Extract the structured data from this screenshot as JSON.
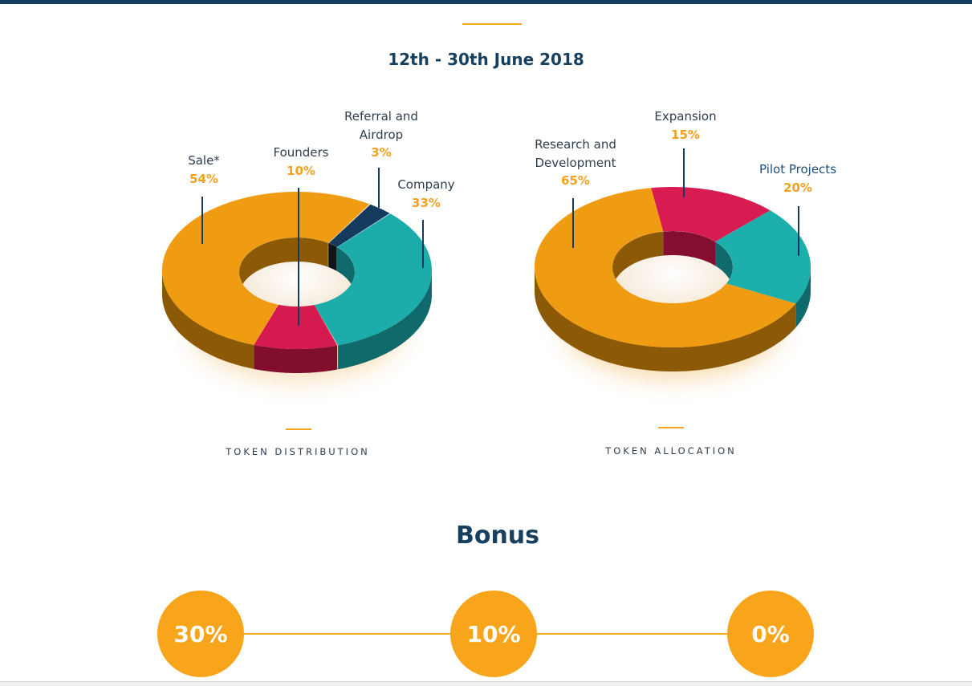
{
  "header": {
    "date_range": "12th - 30th June 2018"
  },
  "charts": [
    {
      "caption": "TOKEN DISTRIBUTION",
      "type": "donut-3d",
      "slices": [
        {
          "name": "Referral and Airdrop",
          "line1": "Referral and",
          "line2": "Airdrop",
          "percent_label": "3%",
          "value": 3,
          "color": "#143b5e",
          "side": "#101418"
        },
        {
          "name": "Company",
          "line1": "Company",
          "percent_label": "33%",
          "value": 33,
          "color": "#1cadaa",
          "side": "#10696a"
        },
        {
          "name": "Founders",
          "line1": "Founders",
          "percent_label": "10%",
          "value": 10,
          "color": "#d41a4e",
          "side": "#820e2e"
        },
        {
          "name": "Sale*",
          "line1": "Sale*",
          "percent_label": "54%",
          "value": 54,
          "color": "#f09c12",
          "side": "#8c5a06"
        }
      ]
    },
    {
      "caption": "TOKEN ALLOCATION",
      "type": "donut-3d",
      "slices": [
        {
          "name": "Expansion",
          "line1": "Expansion",
          "percent_label": "15%",
          "value": 15,
          "color": "#d81b50",
          "side": "#850e30"
        },
        {
          "name": "Pilot Projects",
          "line1": "Pilot Projects",
          "percent_label": "20%",
          "value": 20,
          "color": "#1cafac",
          "side": "#10696a"
        },
        {
          "name": "Research and Development",
          "line1": "Research and",
          "line2": "Development",
          "percent_label": "65%",
          "value": 65,
          "color": "#f09c12",
          "side": "#8c5a06"
        }
      ]
    }
  ],
  "bonus": {
    "title": "Bonus",
    "tiers": [
      "30%",
      "10%",
      "0%"
    ],
    "color": "#f9a51c"
  }
}
